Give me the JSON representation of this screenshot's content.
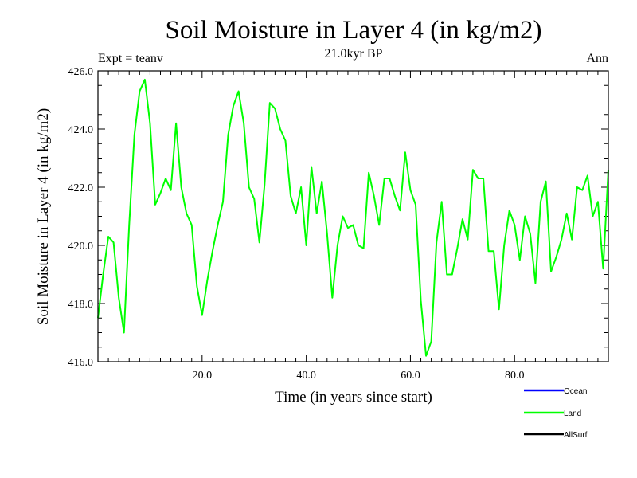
{
  "chart_data": {
    "type": "line",
    "title": "Soil Moisture in Layer 4 (in kg/m2)",
    "subtitle": "21.0kyr BP",
    "experiment_label": "Expt = teanv",
    "season_label": "Ann",
    "xlabel": "Time (in years since start)",
    "ylabel": "Soil Moisture in Layer 4 (in kg/m2)",
    "xlim": [
      0,
      98
    ],
    "ylim": [
      416.0,
      426.0
    ],
    "x_ticks": [
      20,
      40,
      60,
      80
    ],
    "x_tick_labels": [
      "20.0",
      "40.0",
      "60.0",
      "80.0"
    ],
    "y_ticks": [
      416,
      418,
      420,
      422,
      424,
      426
    ],
    "y_tick_labels": [
      "416.0",
      "418.0",
      "420.0",
      "422.0",
      "424.0",
      "426.0"
    ],
    "legend": [
      {
        "name": "Ocean",
        "color": "#0000ff"
      },
      {
        "name": "Land",
        "color": "#00ff00"
      },
      {
        "name": "AllSurf",
        "color": "#000000"
      }
    ],
    "series": [
      {
        "name": "Land",
        "color": "#00ff00",
        "x": [
          0,
          1,
          2,
          3,
          4,
          5,
          6,
          7,
          8,
          9,
          10,
          11,
          12,
          13,
          14,
          15,
          16,
          17,
          18,
          19,
          20,
          21,
          22,
          23,
          24,
          25,
          26,
          27,
          28,
          29,
          30,
          31,
          32,
          33,
          34,
          35,
          36,
          37,
          38,
          39,
          40,
          41,
          42,
          43,
          44,
          45,
          46,
          47,
          48,
          49,
          50,
          51,
          52,
          53,
          54,
          55,
          56,
          57,
          58,
          59,
          60,
          61,
          62,
          63,
          64,
          65,
          66,
          67,
          68,
          69,
          70,
          71,
          72,
          73,
          74,
          75,
          76,
          77,
          78,
          79,
          80,
          81,
          82,
          83,
          84,
          85,
          86,
          87,
          88,
          89,
          90,
          91,
          92,
          93,
          94,
          95,
          96,
          97,
          98
        ],
        "values": [
          417.5,
          419.0,
          420.3,
          420.1,
          418.2,
          417.0,
          420.7,
          423.8,
          425.3,
          425.7,
          424.2,
          421.4,
          421.8,
          422.3,
          421.9,
          424.2,
          422.0,
          421.1,
          420.7,
          418.6,
          417.6,
          418.8,
          419.8,
          420.7,
          421.5,
          423.8,
          424.8,
          425.3,
          424.2,
          422.0,
          421.6,
          420.1,
          422.1,
          424.9,
          424.7,
          424.0,
          423.6,
          421.7,
          421.1,
          422.0,
          420.0,
          422.7,
          421.1,
          422.2,
          420.4,
          418.2,
          420.0,
          421.0,
          420.6,
          420.7,
          420.0,
          419.9,
          422.5,
          421.7,
          420.7,
          422.3,
          422.3,
          421.7,
          421.2,
          423.2,
          421.9,
          421.4,
          418.1,
          416.2,
          416.7,
          420.1,
          421.5,
          419.0,
          419.0,
          419.9,
          420.9,
          420.2,
          422.6,
          422.3,
          422.3,
          419.8,
          419.8,
          417.8,
          420.0,
          421.2,
          420.7,
          419.5,
          421.0,
          420.4,
          418.7,
          421.5,
          422.2,
          419.1,
          419.6,
          420.2,
          421.1,
          420.2,
          422.0,
          421.9,
          422.4,
          421.0,
          421.5,
          419.2,
          422.6
        ]
      }
    ]
  }
}
